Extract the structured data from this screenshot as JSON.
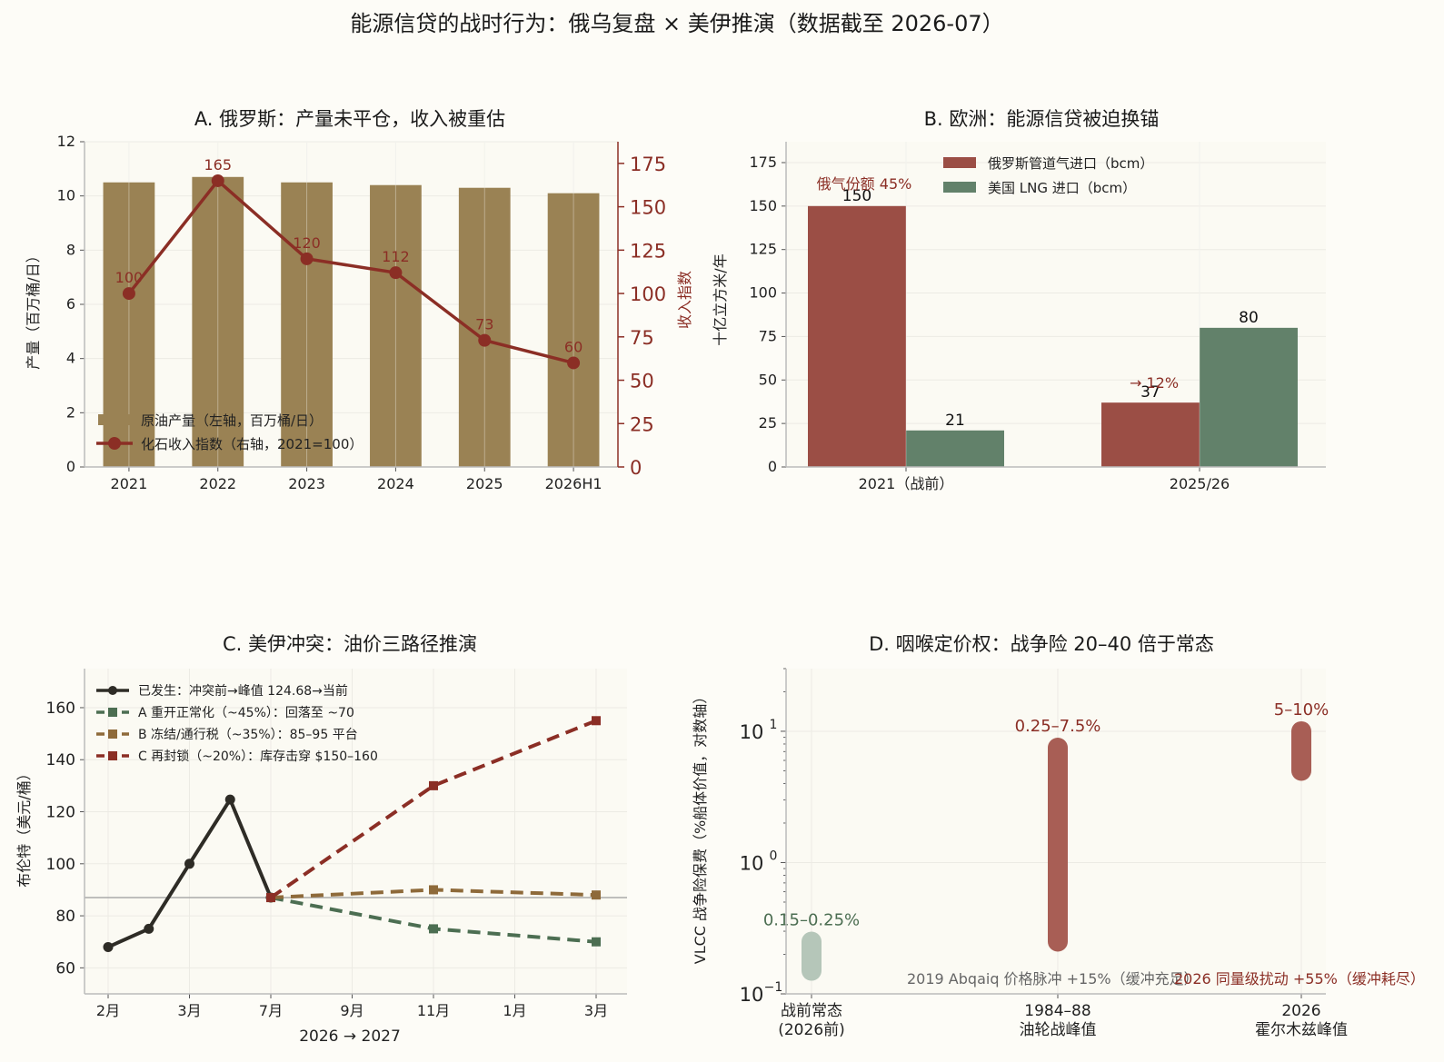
{
  "figure": {
    "suptitle": "能源信贷的战时行为：俄乌复盘 × 美伊推演（数据截至 2026-07）"
  },
  "colors": {
    "bar_gold": "#9a8254",
    "line_red": "#8b2e25",
    "ru_bar": "#9b4e45",
    "us_bar": "#62816a",
    "grid": "#ecebe4",
    "actual": "#2e2c26",
    "scen_a": "#4c6e52",
    "scen_b": "#8e6a3a",
    "scen_c": "#8b2e25",
    "pre_war": "#b5c6b9",
    "peak": "#a85e55"
  },
  "chart_data": [
    {
      "id": "A",
      "type": "bar+line",
      "title": "A. 俄罗斯：产量未平仓，收入被重估",
      "categories": [
        "2021",
        "2022",
        "2023",
        "2024",
        "2025",
        "2026H1"
      ],
      "series": [
        {
          "name": "原油产量（左轴，百万桶/日）",
          "type": "bar",
          "axis": "left",
          "values": [
            10.5,
            10.7,
            10.5,
            10.4,
            10.3,
            10.1
          ]
        },
        {
          "name": "化石收入指数（右轴，2021=100）",
          "type": "line",
          "axis": "right",
          "values": [
            100,
            165,
            120,
            112,
            73,
            60
          ],
          "labels": [
            "100",
            "165",
            "120",
            "112",
            "73",
            "60"
          ]
        }
      ],
      "ylabel": "产量（百万桶/日）",
      "ylim": [
        0,
        12
      ],
      "yticks": [
        "0",
        "2",
        "4",
        "6",
        "8",
        "10",
        "12"
      ],
      "y2label": "收入指数",
      "y2lim": [
        0,
        187.5
      ],
      "y2ticks": [
        "0",
        "25",
        "50",
        "75",
        "100",
        "125",
        "150",
        "175"
      ],
      "legend": "lower-left",
      "grid": true
    },
    {
      "id": "B",
      "type": "bar",
      "title": "B. 欧洲：能源信贷被迫换锚",
      "categories": [
        "2021（战前）",
        "2025/26"
      ],
      "series": [
        {
          "name": "俄罗斯管道气进口（bcm）",
          "values": [
            150,
            37
          ],
          "labels": [
            "150",
            "37"
          ]
        },
        {
          "name": "美国 LNG 进口（bcm）",
          "values": [
            21,
            80
          ],
          "labels": [
            "21",
            "80"
          ]
        }
      ],
      "annotations": [
        "俄气份额 45%",
        "→ 12%"
      ],
      "ylabel": "十亿立方米/年",
      "ylim": [
        0,
        187
      ],
      "yticks": [
        "0",
        "25",
        "50",
        "75",
        "100",
        "125",
        "150",
        "175"
      ],
      "legend": "top-center",
      "grid": true
    },
    {
      "id": "C",
      "type": "line",
      "title": "C. 美伊冲突：油价三路径推演",
      "xlabel": "2026 → 2027",
      "xticks": [
        "2月",
        "3月",
        "7月",
        "9月",
        "11月",
        "1月",
        "3月"
      ],
      "ylabel": "布伦特（美元/桶）",
      "ylim": [
        50,
        175
      ],
      "yticks": [
        "60",
        "80",
        "100",
        "120",
        "140",
        "160"
      ],
      "reference_line": 87,
      "series": [
        {
          "name": "已发生：冲突前→峰值 124.68→当前",
          "style": "solid",
          "x": [
            0,
            0.5,
            1,
            1.5,
            2
          ],
          "y": [
            68,
            75,
            100,
            124.68,
            87
          ]
        },
        {
          "name": "A 重开正常化（~45%）：回落至 ~70",
          "style": "dashed",
          "x": [
            2,
            4,
            6
          ],
          "y": [
            87,
            75,
            70
          ]
        },
        {
          "name": "B 冻结/通行税（~35%）：85–95 平台",
          "style": "dashed",
          "x": [
            2,
            4,
            6
          ],
          "y": [
            87,
            90,
            88
          ]
        },
        {
          "name": "C 再封锁（~20%）：库存击穿 $150–160",
          "style": "dashed",
          "x": [
            2,
            4,
            6
          ],
          "y": [
            87,
            130,
            155
          ]
        }
      ],
      "legend": "top-left",
      "grid": true
    },
    {
      "id": "D",
      "type": "range",
      "title": "D. 咽喉定价权：战争险 20–40 倍于常态",
      "ylabel": "VLCC 战争险保费（%船体价值，对数轴）",
      "yscale": "log",
      "ylim": [
        0.1,
        30
      ],
      "yticks": [
        {
          "base": "10",
          "exp": "−1"
        },
        {
          "base": "10",
          "exp": "0"
        },
        {
          "base": "10",
          "exp": "1"
        }
      ],
      "categories": [
        {
          "lines": [
            "战前常态",
            "(2026前)"
          ],
          "low": 0.15,
          "high": 0.25,
          "label": "0.15–0.25%"
        },
        {
          "lines": [
            "1984–88",
            "油轮战峰值"
          ],
          "low": 0.25,
          "high": 7.5,
          "label": "0.25–7.5%"
        },
        {
          "lines": [
            "2026",
            "霍尔木兹峰值"
          ],
          "low": 5,
          "high": 10,
          "label": "5–10%"
        }
      ],
      "notes": [
        "2019 Abqaiq 价格脉冲 +15%（缓冲充足）",
        "2026 同量级扰动 +55%（缓冲耗尽）"
      ],
      "grid": true
    }
  ]
}
